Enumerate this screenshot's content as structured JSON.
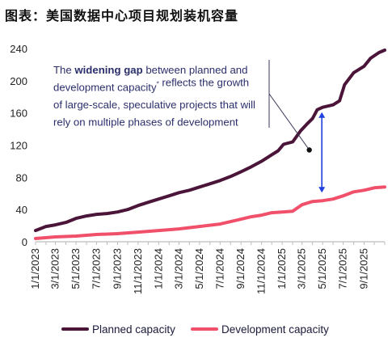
{
  "page": {
    "title": "图表：美国数据中心项目规划装机容量"
  },
  "chart_data": {
    "type": "line",
    "ylim": [
      0,
      240
    ],
    "yticks": [
      0,
      40,
      80,
      120,
      160,
      200,
      240
    ],
    "xlim": [
      "2023-01-01",
      "2025-11-01"
    ],
    "xtick_labels": [
      "1/1/2023",
      "3/1/2023",
      "5/1/2023",
      "7/1/2023",
      "9/1/2023",
      "11/1/2023",
      "1/1/2024",
      "3/1/2024",
      "5/1/2024",
      "7/1/2024",
      "9/1/2024",
      "11/1/2024",
      "1/1/2025",
      "3/1/2025",
      "5/1/2025",
      "7/1/2025",
      "9/1/2025"
    ],
    "grid": false,
    "legend_position": "bottom",
    "series": [
      {
        "name": "Planned capacity",
        "color": "#4a1538",
        "points": [
          [
            "2023-01-01",
            14
          ],
          [
            "2023-02-01",
            19
          ],
          [
            "2023-03-01",
            21
          ],
          [
            "2023-04-01",
            24
          ],
          [
            "2023-05-01",
            29
          ],
          [
            "2023-06-01",
            32
          ],
          [
            "2023-07-01",
            34
          ],
          [
            "2023-08-01",
            35
          ],
          [
            "2023-09-01",
            37
          ],
          [
            "2023-10-01",
            40
          ],
          [
            "2023-11-01",
            45
          ],
          [
            "2023-12-01",
            49
          ],
          [
            "2024-01-01",
            53
          ],
          [
            "2024-02-01",
            57
          ],
          [
            "2024-03-01",
            61
          ],
          [
            "2024-04-01",
            64
          ],
          [
            "2024-05-01",
            68
          ],
          [
            "2024-06-01",
            72
          ],
          [
            "2024-07-01",
            76
          ],
          [
            "2024-08-01",
            81
          ],
          [
            "2024-09-01",
            87
          ],
          [
            "2024-10-01",
            93
          ],
          [
            "2024-11-01",
            100
          ],
          [
            "2024-12-01",
            108
          ],
          [
            "2024-12-20",
            113
          ],
          [
            "2025-01-05",
            121
          ],
          [
            "2025-02-01",
            124
          ],
          [
            "2025-02-25",
            138
          ],
          [
            "2025-03-15",
            146
          ],
          [
            "2025-04-01",
            153
          ],
          [
            "2025-04-15",
            164
          ],
          [
            "2025-05-01",
            167
          ],
          [
            "2025-06-01",
            170
          ],
          [
            "2025-06-20",
            175
          ],
          [
            "2025-07-05",
            195
          ],
          [
            "2025-08-01",
            210
          ],
          [
            "2025-09-01",
            218
          ],
          [
            "2025-09-20",
            228
          ],
          [
            "2025-10-15",
            235
          ],
          [
            "2025-11-01",
            238
          ]
        ]
      },
      {
        "name": "Development capacity",
        "color": "#f0506a",
        "points": [
          [
            "2023-01-01",
            4
          ],
          [
            "2023-03-01",
            6
          ],
          [
            "2023-05-01",
            7
          ],
          [
            "2023-07-01",
            9
          ],
          [
            "2023-09-01",
            10
          ],
          [
            "2023-11-01",
            12
          ],
          [
            "2024-01-01",
            14
          ],
          [
            "2024-03-01",
            16
          ],
          [
            "2024-05-01",
            19
          ],
          [
            "2024-07-01",
            22
          ],
          [
            "2024-08-01",
            25
          ],
          [
            "2024-09-01",
            28
          ],
          [
            "2024-10-01",
            31
          ],
          [
            "2024-11-01",
            33
          ],
          [
            "2024-12-01",
            36
          ],
          [
            "2025-01-01",
            37
          ],
          [
            "2025-02-01",
            38
          ],
          [
            "2025-03-01",
            46
          ],
          [
            "2025-04-01",
            50
          ],
          [
            "2025-05-01",
            51
          ],
          [
            "2025-06-01",
            53
          ],
          [
            "2025-07-01",
            57
          ],
          [
            "2025-08-01",
            62
          ],
          [
            "2025-09-01",
            64
          ],
          [
            "2025-10-01",
            67
          ],
          [
            "2025-11-01",
            68
          ]
        ]
      }
    ],
    "annotation": {
      "lines": [
        {
          "parts": [
            {
              "text": "The "
            },
            {
              "text": "widening gap",
              "bold": true
            },
            {
              "text": " between planned and"
            }
          ]
        },
        {
          "parts": [
            {
              "text": "development capacity"
            },
            {
              "text": "*",
              "sup": true
            },
            {
              "text": " reflects the growth"
            }
          ]
        },
        {
          "parts": [
            {
              "text": "of large-scale, speculative projects that will"
            }
          ]
        },
        {
          "parts": [
            {
              "text": "rely on multiple phases of development"
            }
          ]
        }
      ],
      "callout_point": [
        "2025-04-01",
        117
      ],
      "gap_arrow": {
        "date": "2025-05-01",
        "from": 167,
        "to": 53,
        "color": "#1f3fe0"
      }
    }
  }
}
